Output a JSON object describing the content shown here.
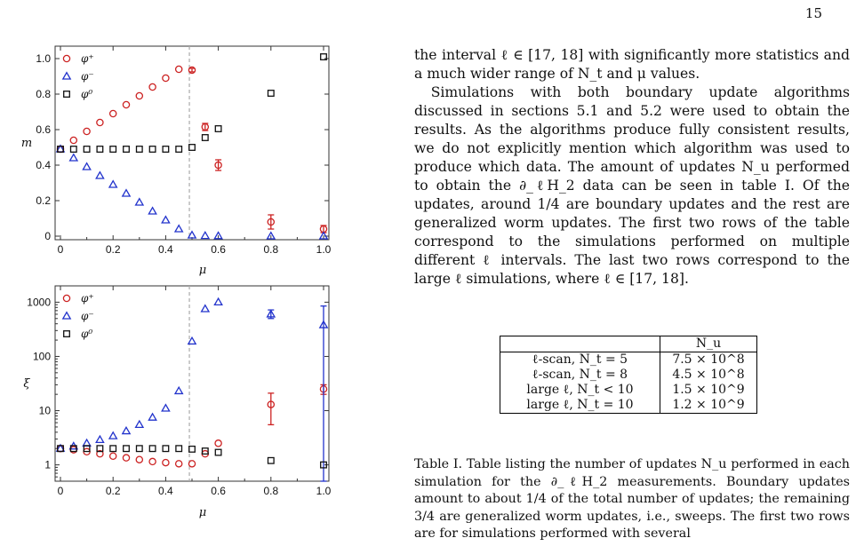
{
  "page_number": "15",
  "body": {
    "para1": "the interval ℓ ∈ [17, 18] with significantly more statistics and a much wider range of N_t and μ values.",
    "para2": "Simulations with both boundary update algorithms discussed in sections 5.1 and 5.2 were used to obtain the results. As the algorithms produce fully consistent results, we do not explicitly mention which algorithm was used to produce which data. The amount of updates N_u performed to obtain the ∂_ℓH_2 data can be seen in table I. Of the updates, around 1/4 are boundary updates and the rest are generalized worm updates. The first two rows of the table correspond to the simulations performed on multiple different ℓ intervals. The last two rows correspond to the large ℓ simulations, where ℓ ∈ [17, 18]."
  },
  "table": {
    "header": "N_u",
    "rows": [
      {
        "label": "ℓ-scan, N_t = 5",
        "value": "7.5 × 10^8"
      },
      {
        "label": "ℓ-scan, N_t = 8",
        "value": "4.5 × 10^8"
      },
      {
        "label": "large ℓ, N_t < 10",
        "value": "1.5 × 10^9"
      },
      {
        "label": "large ℓ, N_t = 10",
        "value": "1.2 × 10^9"
      }
    ]
  },
  "caption": "Table I. Table listing the number of updates N_u performed in each simulation for the ∂_ℓH_2 measurements. Boundary updates amount to about 1/4 of the total number of updates; the remaining 3/4 are generalized worm updates, i.e., sweeps. The first two rows are for simulations performed with several",
  "colors": {
    "phi_plus": "#cc2222",
    "phi_minus": "#2233cc",
    "phi_zero": "#111111",
    "dashed": "#aaaaaa"
  },
  "chart_data": [
    {
      "type": "scatter",
      "xlabel": "μ",
      "ylabel": "m",
      "xlim": [
        0,
        1.0
      ],
      "ylim": [
        0,
        1.0
      ],
      "xticks": [
        "0",
        "0.2",
        "0.4",
        "0.6",
        "0.8",
        "1.0"
      ],
      "yticks": [
        "0",
        "0.2",
        "0.4",
        "0.6",
        "0.8",
        "1.0"
      ],
      "legend": "top-left",
      "vline": 0.49,
      "series": [
        {
          "name": "φ⁺",
          "marker": "circle",
          "points": [
            [
              0,
              0.49
            ],
            [
              0.05,
              0.54
            ],
            [
              0.1,
              0.59
            ],
            [
              0.15,
              0.64
            ],
            [
              0.2,
              0.69
            ],
            [
              0.25,
              0.74
            ],
            [
              0.3,
              0.79
            ],
            [
              0.35,
              0.84
            ],
            [
              0.4,
              0.89
            ],
            [
              0.45,
              0.94
            ],
            [
              0.5,
              0.935
            ],
            [
              0.55,
              0.615
            ],
            [
              0.6,
              0.4
            ],
            [
              0.8,
              0.08
            ],
            [
              1.0,
              0.04
            ]
          ],
          "errors": [
            0,
            0,
            0,
            0,
            0,
            0,
            0,
            0,
            0,
            0,
            0.01,
            0.02,
            0.03,
            0.04,
            0.02
          ]
        },
        {
          "name": "φ⁻",
          "marker": "triangle",
          "points": [
            [
              0,
              0.49
            ],
            [
              0.05,
              0.44
            ],
            [
              0.1,
              0.39
            ],
            [
              0.15,
              0.34
            ],
            [
              0.2,
              0.29
            ],
            [
              0.25,
              0.24
            ],
            [
              0.3,
              0.19
            ],
            [
              0.35,
              0.14
            ],
            [
              0.4,
              0.09
            ],
            [
              0.45,
              0.04
            ],
            [
              0.5,
              0.005
            ],
            [
              0.55,
              0.002
            ],
            [
              0.6,
              0.001
            ],
            [
              0.8,
              0.0
            ],
            [
              1.0,
              0.0
            ]
          ],
          "errors": []
        },
        {
          "name": "φ⁰",
          "marker": "square",
          "points": [
            [
              0,
              0.49
            ],
            [
              0.05,
              0.49
            ],
            [
              0.1,
              0.49
            ],
            [
              0.15,
              0.49
            ],
            [
              0.2,
              0.49
            ],
            [
              0.25,
              0.49
            ],
            [
              0.3,
              0.49
            ],
            [
              0.35,
              0.49
            ],
            [
              0.4,
              0.49
            ],
            [
              0.45,
              0.49
            ],
            [
              0.5,
              0.5
            ],
            [
              0.55,
              0.555
            ],
            [
              0.6,
              0.605
            ],
            [
              0.8,
              0.805
            ],
            [
              1.0,
              1.01
            ]
          ],
          "errors": []
        }
      ]
    },
    {
      "type": "scatter",
      "xlabel": "μ",
      "ylabel": "ξ",
      "yscale": "log",
      "xlim": [
        0,
        1.0
      ],
      "ylim": [
        0.5,
        2000
      ],
      "xticks": [
        "0",
        "0.2",
        "0.4",
        "0.6",
        "0.8",
        "1.0"
      ],
      "yticks": [
        "1",
        "10",
        "100",
        "1000"
      ],
      "legend": "top-left",
      "vline": 0.49,
      "series": [
        {
          "name": "φ⁺",
          "marker": "circle",
          "points": [
            [
              0,
              2.0
            ],
            [
              0.05,
              1.9
            ],
            [
              0.1,
              1.75
            ],
            [
              0.15,
              1.6
            ],
            [
              0.2,
              1.45
            ],
            [
              0.25,
              1.35
            ],
            [
              0.3,
              1.25
            ],
            [
              0.35,
              1.15
            ],
            [
              0.4,
              1.1
            ],
            [
              0.45,
              1.05
            ],
            [
              0.5,
              1.05
            ],
            [
              0.55,
              1.6
            ],
            [
              0.6,
              2.5
            ],
            [
              0.8,
              13
            ],
            [
              1.0,
              25
            ]
          ],
          "errlo": [
            0,
            0,
            0,
            0,
            0,
            0,
            0,
            0,
            0,
            0,
            0,
            0,
            0,
            7.5,
            5
          ],
          "errhi": [
            0,
            0,
            0,
            0,
            0,
            0,
            0,
            0,
            0,
            0,
            0,
            0,
            0,
            8,
            5
          ]
        },
        {
          "name": "φ⁻",
          "marker": "triangle",
          "points": [
            [
              0,
              2.0
            ],
            [
              0.05,
              2.2
            ],
            [
              0.1,
              2.5
            ],
            [
              0.15,
              2.9
            ],
            [
              0.2,
              3.4
            ],
            [
              0.25,
              4.2
            ],
            [
              0.3,
              5.5
            ],
            [
              0.35,
              7.5
            ],
            [
              0.4,
              11
            ],
            [
              0.45,
              23
            ],
            [
              0.5,
              190
            ],
            [
              0.55,
              750
            ],
            [
              0.6,
              1000
            ],
            [
              0.8,
              600
            ],
            [
              1.0,
              380
            ]
          ],
          "errlo": [
            0,
            0,
            0,
            0,
            0,
            0,
            0,
            0,
            0,
            0,
            0,
            0,
            0,
            100,
            379.5
          ],
          "errhi": [
            0,
            0,
            0,
            0,
            0,
            0,
            0,
            0,
            0,
            0,
            0,
            0,
            0,
            120,
            470
          ]
        },
        {
          "name": "φ⁰",
          "marker": "square",
          "points": [
            [
              0,
              2.0
            ],
            [
              0.05,
              2.0
            ],
            [
              0.1,
              2.0
            ],
            [
              0.15,
              2.0
            ],
            [
              0.2,
              2.0
            ],
            [
              0.25,
              2.0
            ],
            [
              0.3,
              2.0
            ],
            [
              0.35,
              2.0
            ],
            [
              0.4,
              2.0
            ],
            [
              0.45,
              2.0
            ],
            [
              0.5,
              1.95
            ],
            [
              0.55,
              1.8
            ],
            [
              0.6,
              1.7
            ],
            [
              0.8,
              1.2
            ],
            [
              1.0,
              1.0
            ]
          ],
          "errlo": [],
          "errhi": []
        }
      ]
    }
  ]
}
